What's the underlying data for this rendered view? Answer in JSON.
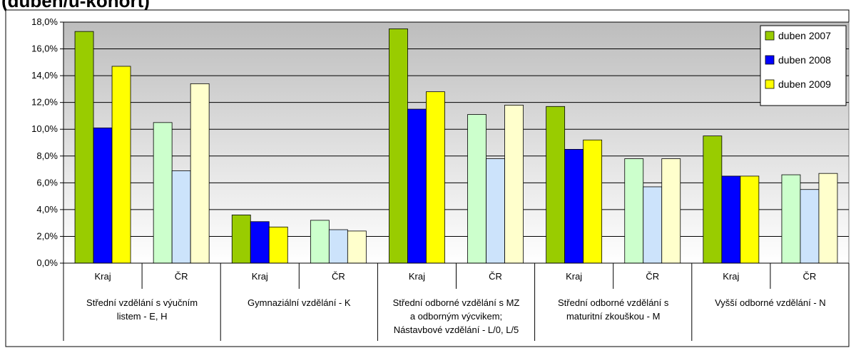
{
  "chart_data": {
    "type": "bar",
    "title": "(duben/ü-kohort)",
    "ylim": [
      0,
      18
    ],
    "yticks": [
      "0,0%",
      "2,0%",
      "4,0%",
      "6,0%",
      "8,0%",
      "10,0%",
      "12,0%",
      "14,0%",
      "16,0%",
      "18,0%"
    ],
    "grid": true,
    "legend_position": "top-right",
    "groups": [
      {
        "label": [
          "Střední vzdělání s výučním",
          "listem - E, H"
        ],
        "subcategories": [
          "Kraj",
          "ČR"
        ]
      },
      {
        "label": [
          "Gymnaziální vzdělání - K"
        ],
        "subcategories": [
          "Kraj",
          "ČR"
        ]
      },
      {
        "label": [
          "Střední odborné vzdělání s MZ",
          "a odborným výcvikem;",
          "Nástavbové vzdělání - L/0, L/5"
        ],
        "subcategories": [
          "Kraj",
          "ČR"
        ]
      },
      {
        "label": [
          "Střední odborné vzdělání s",
          "maturitní zkouškou - M"
        ],
        "subcategories": [
          "Kraj",
          "ČR"
        ]
      },
      {
        "label": [
          "Vyšší odborné vzdělání - N"
        ],
        "subcategories": [
          "Kraj",
          "ČR"
        ]
      }
    ],
    "series": [
      {
        "name": "duben 2007",
        "color": "#99cc00",
        "light_color": "#ccffcc",
        "values": [
          17.3,
          10.5,
          3.6,
          3.2,
          17.5,
          11.1,
          11.7,
          7.8,
          9.5,
          6.6
        ]
      },
      {
        "name": "duben 2008",
        "color": "#0000ff",
        "light_color": "#cce3fb",
        "values": [
          10.1,
          6.9,
          3.1,
          2.5,
          11.5,
          7.8,
          8.5,
          5.7,
          6.5,
          5.5
        ]
      },
      {
        "name": "duben 2009",
        "color": "#ffff00",
        "light_color": "#ffffcc",
        "values": [
          14.7,
          13.4,
          2.7,
          2.4,
          12.8,
          11.8,
          9.2,
          7.8,
          6.5,
          6.7
        ]
      }
    ]
  }
}
